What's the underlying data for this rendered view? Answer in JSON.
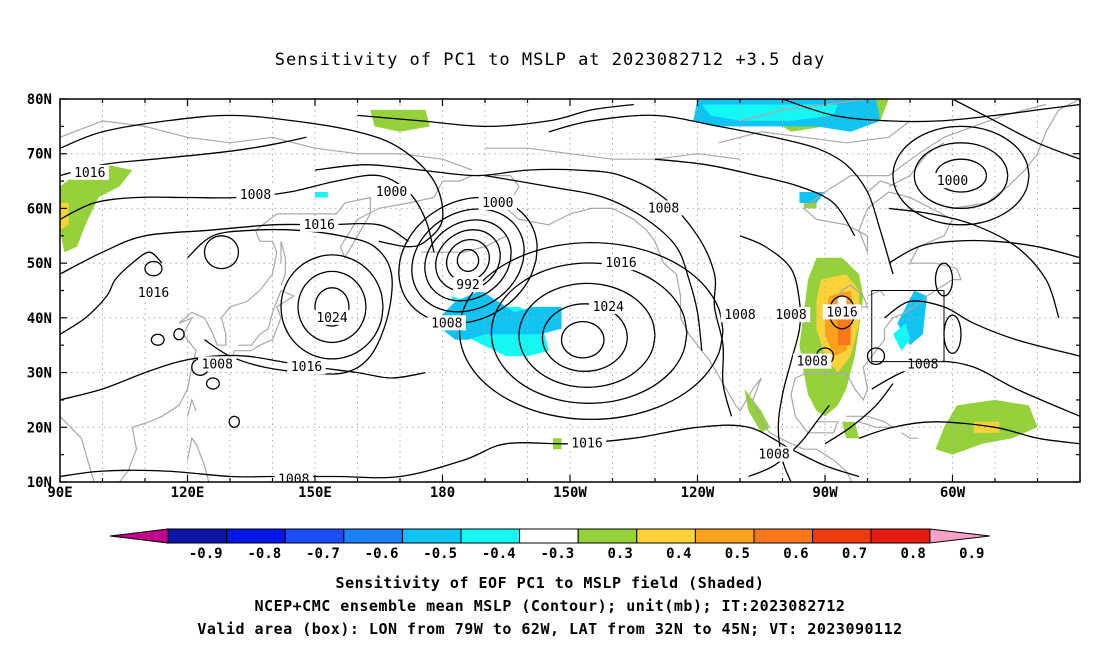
{
  "title": "Sensitivity of PC1 to MSLP at 2023082712 +3.5 day",
  "lat_labels": [
    "80N",
    "70N",
    "60N",
    "50N",
    "40N",
    "30N",
    "20N",
    "10N"
  ],
  "lon_labels": [
    "90E",
    "120E",
    "150E",
    "180",
    "150W",
    "120W",
    "90W",
    "60W"
  ],
  "contour_labels": [
    {
      "text": "1016",
      "lon": 97,
      "lat": 66.5
    },
    {
      "text": "1008",
      "lon": 136,
      "lat": 62.5
    },
    {
      "text": "1000",
      "lon": 168,
      "lat": 63
    },
    {
      "text": "1000",
      "lon": 193,
      "lat": 61
    },
    {
      "text": "1008",
      "lon": 232,
      "lat": 60
    },
    {
      "text": "1000",
      "lon": 300,
      "lat": 65
    },
    {
      "text": "1016",
      "lon": 151,
      "lat": 57
    },
    {
      "text": "1016",
      "lon": 112,
      "lat": 44.5
    },
    {
      "text": "1024",
      "lon": 154,
      "lat": 40
    },
    {
      "text": "992",
      "lon": 186,
      "lat": 46
    },
    {
      "text": "1016",
      "lon": 222,
      "lat": 50
    },
    {
      "text": "1024",
      "lon": 219,
      "lat": 42
    },
    {
      "text": "1008",
      "lon": 181,
      "lat": 39
    },
    {
      "text": "1008",
      "lon": 250,
      "lat": 40.5
    },
    {
      "text": "1008",
      "lon": 262,
      "lat": 40.5
    },
    {
      "text": "1016",
      "lon": 274,
      "lat": 41
    },
    {
      "text": "1008",
      "lon": 267,
      "lat": 32
    },
    {
      "text": "1008",
      "lon": 293,
      "lat": 31.5
    },
    {
      "text": "1008",
      "lon": 127,
      "lat": 31.5
    },
    {
      "text": "1016",
      "lon": 148,
      "lat": 31
    },
    {
      "text": "1016",
      "lon": 214,
      "lat": 17
    },
    {
      "text": "1008",
      "lon": 258,
      "lat": 15
    },
    {
      "text": "1008",
      "lon": 145,
      "lat": 10.5
    }
  ],
  "colorbar": {
    "labels": [
      "-0.9",
      "-0.8",
      "-0.7",
      "-0.6",
      "-0.5",
      "-0.4",
      "-0.3",
      "0.3",
      "0.4",
      "0.5",
      "0.6",
      "0.7",
      "0.8",
      "0.9"
    ],
    "colors": [
      "#0c16a6",
      "#0015e8",
      "#1b4ef7",
      "#1a82f5",
      "#0fc3f2",
      "#14f7f5",
      "#ffffff",
      "#94d13a",
      "#fcd238",
      "#fba21c",
      "#f87718",
      "#f23a11",
      "#e61b10"
    ],
    "low_end_color": "#c3008c",
    "high_end_color": "#f7a3c8"
  },
  "captions": [
    "Sensitivity of EOF PC1 to MSLP field (Shaded)",
    "NCEP+CMC ensemble mean MSLP (Contour); unit(mb); IT:2023082712",
    "Valid area (box): LON from 79W to 62W, LAT from 32N to 45N; VT: 2023090112"
  ],
  "valid_box": {
    "lon_min": 281,
    "lon_max": 298,
    "lat_min": 32,
    "lat_max": 45
  }
}
